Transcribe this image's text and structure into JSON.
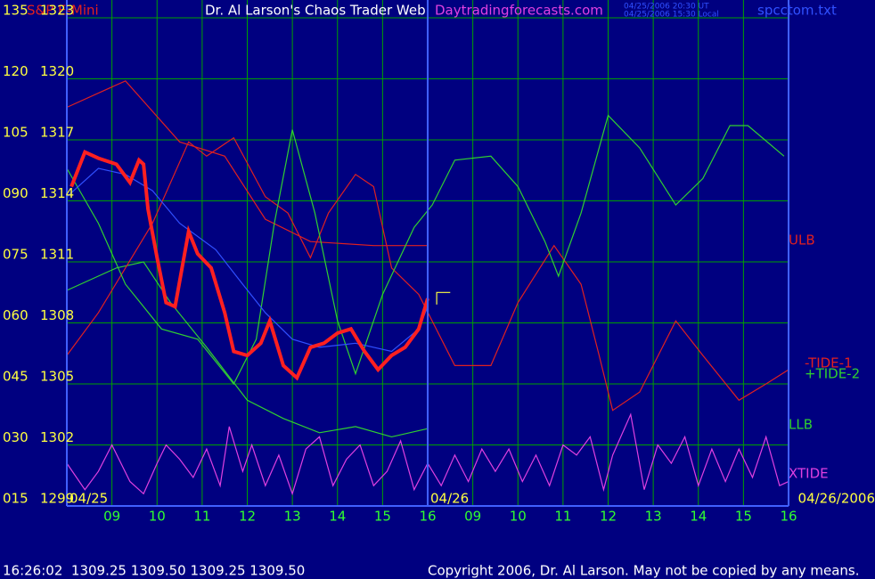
{
  "chart_data": {
    "type": "line",
    "annotations": [
      "S&P E-Mini",
      "Dr. Al Larson's Chaos Trader Web",
      "Daytradingforecasts.com",
      "04/25/2006 20:30 UT",
      "04/25/2006 15:30 Local",
      "spcctom.txt",
      "04/25",
      "04/26",
      "04/26/2006",
      "16:26:02  1309.25 1309.50 1309.25 1309.50",
      "Copyright 2006, Dr. Al Larson. May not be copied by any means."
    ],
    "xlim": [
      0,
      16
    ],
    "xticks": [
      {
        "value": 1,
        "label": "09"
      },
      {
        "value": 2,
        "label": "10"
      },
      {
        "value": 3,
        "label": "11"
      },
      {
        "value": 4,
        "label": "12"
      },
      {
        "value": 5,
        "label": "13"
      },
      {
        "value": 6,
        "label": "14"
      },
      {
        "value": 7,
        "label": "15"
      },
      {
        "value": 8,
        "label": "16"
      },
      {
        "value": 9,
        "label": "09"
      },
      {
        "value": 10,
        "label": "10"
      },
      {
        "value": 11,
        "label": "11"
      },
      {
        "value": 12,
        "label": "12"
      },
      {
        "value": 13,
        "label": "13"
      },
      {
        "value": 14,
        "label": "14"
      },
      {
        "value": 15,
        "label": "15"
      },
      {
        "value": 16,
        "label": "16"
      }
    ],
    "ylim": [
      1299,
      1323
    ],
    "yticks": [
      1299,
      1302,
      1305,
      1308,
      1311,
      1314,
      1317,
      1320,
      1323
    ],
    "y2lim": [
      15,
      135
    ],
    "y2ticks": [
      {
        "value": 15,
        "label": "015"
      },
      {
        "value": 30,
        "label": "030"
      },
      {
        "value": 45,
        "label": "045"
      },
      {
        "value": 60,
        "label": "060"
      },
      {
        "value": 75,
        "label": "075"
      },
      {
        "value": 90,
        "label": "090"
      },
      105,
      120,
      135
    ],
    "grid": true,
    "series": [
      {
        "name": "ULB",
        "color": "#e02020",
        "x": [
          0,
          1.3,
          2.5,
          3.5,
          4.4,
          5.4,
          6.8,
          8.0
        ],
        "values": [
          1318.6,
          1319.9,
          1316.9,
          1316.2,
          1313.1,
          1312.0,
          1311.8,
          1311.8
        ]
      },
      {
        "name": "LLB",
        "color": "#30d030",
        "x": [
          0,
          1.1,
          1.7,
          2.3,
          3.1,
          4.0,
          4.8,
          5.6,
          6.4,
          7.2,
          8.0
        ],
        "values": [
          1309.6,
          1310.7,
          1311.0,
          1309.0,
          1306.8,
          1304.2,
          1303.3,
          1302.6,
          1302.9,
          1302.4,
          1302.8
        ]
      },
      {
        "name": "-TIDE-1",
        "color": "#e02020",
        "x": [
          0,
          0.7,
          1.3,
          1.9,
          2.7,
          3.1,
          3.7,
          4.4,
          4.9,
          5.4,
          5.8,
          6.4,
          6.8,
          7.2,
          7.8,
          8.6,
          9.4,
          10.0,
          10.8,
          11.4,
          11.8,
          12.1,
          12.7,
          13.5,
          14.1,
          14.9,
          15.5,
          16.0
        ],
        "values": [
          1306.4,
          1308.5,
          1310.7,
          1312.9,
          1316.9,
          1316.2,
          1317.1,
          1314.2,
          1313.4,
          1311.2,
          1313.4,
          1315.3,
          1314.7,
          1310.7,
          1309.4,
          1305.9,
          1305.9,
          1309.0,
          1311.8,
          1309.9,
          1306.4,
          1303.7,
          1304.6,
          1308.1,
          1306.4,
          1304.2,
          1305.0,
          1305.7
        ]
      },
      {
        "name": "+TIDE-2",
        "color": "#30d030",
        "x": [
          0,
          0.7,
          1.3,
          2.1,
          2.9,
          3.7,
          4.2,
          4.6,
          5.0,
          5.5,
          6.0,
          6.4,
          7.0,
          7.7,
          8.1,
          8.6,
          9.4,
          10.0,
          10.6,
          10.9,
          11.4,
          12.0,
          12.7,
          13.5,
          14.1,
          14.7,
          15.1,
          15.9
        ],
        "values": [
          1315.6,
          1312.9,
          1309.9,
          1307.7,
          1307.2,
          1305.0,
          1307.2,
          1312.9,
          1317.5,
          1313.4,
          1308.1,
          1305.5,
          1309.4,
          1312.7,
          1313.8,
          1316.0,
          1316.2,
          1314.7,
          1312.0,
          1310.3,
          1313.4,
          1318.2,
          1316.6,
          1313.8,
          1315.1,
          1317.7,
          1317.7,
          1316.2
        ]
      },
      {
        "name": "XTIDE",
        "color": "#e040e0",
        "x": [
          0,
          0.4,
          0.7,
          1.0,
          1.4,
          1.7,
          2.0,
          2.2,
          2.5,
          2.8,
          3.1,
          3.4,
          3.6,
          3.9,
          4.1,
          4.4,
          4.7,
          5.0,
          5.3,
          5.6,
          5.9,
          6.2,
          6.5,
          6.8,
          7.1,
          7.4,
          7.7,
          8.0,
          8.3,
          8.6,
          8.9,
          9.2,
          9.5,
          9.8,
          10.1,
          10.4,
          10.7,
          11.0,
          11.3,
          11.6,
          11.9,
          12.1,
          12.5,
          12.8,
          13.1,
          13.4,
          13.7,
          14.0,
          14.3,
          14.6,
          14.9,
          15.2,
          15.5,
          15.8,
          16.0
        ],
        "values": [
          1301.1,
          1299.8,
          1300.7,
          1302.0,
          1300.2,
          1299.6,
          1301.1,
          1302.0,
          1301.3,
          1300.4,
          1301.8,
          1300.0,
          1302.9,
          1300.7,
          1302.0,
          1300.0,
          1301.5,
          1299.6,
          1301.8,
          1302.4,
          1300.0,
          1301.3,
          1302.0,
          1300.0,
          1300.7,
          1302.2,
          1299.8,
          1301.1,
          1300.0,
          1301.5,
          1300.2,
          1301.8,
          1300.7,
          1301.8,
          1300.2,
          1301.5,
          1300.0,
          1302.0,
          1301.5,
          1302.4,
          1299.8,
          1301.5,
          1303.5,
          1299.8,
          1302.0,
          1301.1,
          1302.4,
          1300.0,
          1301.8,
          1300.2,
          1301.8,
          1300.4,
          1302.4,
          1300.0,
          1300.2
        ]
      },
      {
        "color": "#3050ff",
        "x": [
          0,
          0.7,
          1.3,
          1.9,
          2.5,
          3.3,
          3.9,
          4.4,
          5.0,
          5.6,
          6.4,
          7.2,
          7.8,
          8.0
        ],
        "values": [
          1314.2,
          1315.6,
          1315.3,
          1314.5,
          1312.9,
          1311.6,
          1309.9,
          1308.5,
          1307.2,
          1306.8,
          1307.0,
          1306.6,
          1307.7,
          1308.8
        ]
      },
      {
        "color": "#ff2020",
        "width": 4,
        "x": [
          0.1,
          0.4,
          0.7,
          1.1,
          1.4,
          1.6,
          1.7,
          1.8,
          2.0,
          2.2,
          2.4,
          2.7,
          2.9,
          3.2,
          3.5,
          3.7,
          4.0,
          4.3,
          4.5,
          4.8,
          5.1,
          5.4,
          5.7,
          6.0,
          6.3,
          6.6,
          6.9,
          7.2,
          7.5,
          7.8,
          8.0
        ],
        "values": [
          1314.7,
          1316.4,
          1316.1,
          1315.8,
          1314.9,
          1316.0,
          1315.8,
          1313.6,
          1311.2,
          1309.0,
          1308.8,
          1312.5,
          1311.4,
          1310.7,
          1308.5,
          1306.6,
          1306.4,
          1307.0,
          1308.1,
          1305.9,
          1305.3,
          1306.8,
          1307.0,
          1307.5,
          1307.7,
          1306.6,
          1305.7,
          1306.4,
          1306.8,
          1307.7,
          1309.2
        ]
      },
      {
        "color": "#ffff40",
        "x": [
          8.2,
          8.2,
          8.5
        ],
        "values": [
          1308.9,
          1309.5,
          1309.5
        ]
      }
    ]
  }
}
